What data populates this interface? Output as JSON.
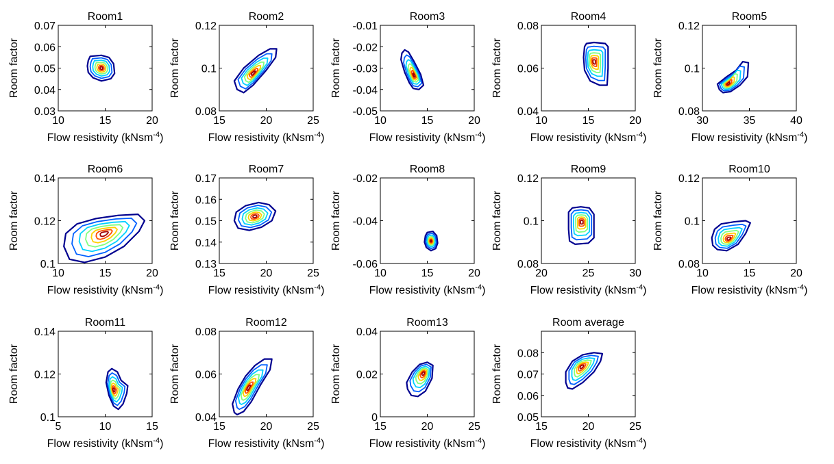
{
  "chart_data": {
    "type": "contour",
    "xlabel": "Flow resistivity (kNsm",
    "xlabel_superscript": "-4",
    "xlabel_suffix": ")",
    "ylabel": "Room factor",
    "grid": false,
    "colors": [
      "#00008f",
      "#0060ff",
      "#00d0ff",
      "#80ff80",
      "#ffd000",
      "#ff5000",
      "#a00000"
    ],
    "panels": [
      {
        "title": "Room1",
        "xlim": [
          10,
          20
        ],
        "ylim": [
          0.03,
          0.07
        ],
        "xticks": [
          "10",
          "15",
          "20"
        ],
        "yticks": [
          "0.03",
          "0.04",
          "0.05",
          "0.06",
          "0.07"
        ],
        "contours": [
          {
            "cx": 14.6,
            "cy": 0.05,
            "points": [
              [
                13.2,
                0.0535
              ],
              [
                13.4,
                0.0555
              ],
              [
                14.6,
                0.056
              ],
              [
                15.4,
                0.055
              ],
              [
                15.9,
                0.052
              ],
              [
                16.0,
                0.0475
              ],
              [
                15.6,
                0.045
              ],
              [
                14.6,
                0.044
              ],
              [
                13.7,
                0.0455
              ],
              [
                13.2,
                0.048
              ],
              [
                13.1,
                0.051
              ]
            ]
          }
        ]
      },
      {
        "title": "Room2",
        "xlim": [
          15,
          25
        ],
        "ylim": [
          0.08,
          0.12
        ],
        "xticks": [
          "15",
          "20",
          "25"
        ],
        "yticks": [
          "0.08",
          "0.1",
          "0.12"
        ],
        "contours": [
          {
            "cx": 18.6,
            "cy": 0.0975,
            "points": [
              [
                16.9,
                0.09
              ],
              [
                16.6,
                0.094
              ],
              [
                17.6,
                0.1
              ],
              [
                19.2,
                0.106
              ],
              [
                20.4,
                0.109
              ],
              [
                21.1,
                0.109
              ],
              [
                21.0,
                0.105
              ],
              [
                20.0,
                0.099
              ],
              [
                18.6,
                0.092
              ],
              [
                17.6,
                0.0885
              ]
            ]
          }
        ]
      },
      {
        "title": "Room3",
        "xlim": [
          10,
          20
        ],
        "ylim": [
          -0.05,
          -0.01
        ],
        "xticks": [
          "10",
          "15",
          "20"
        ],
        "yticks": [
          "-0.05",
          "-0.04",
          "-0.03",
          "-0.02",
          "-0.01"
        ],
        "contours": [
          {
            "cx": 13.6,
            "cy": -0.0335,
            "points": [
              [
                12.3,
                -0.023
              ],
              [
                12.2,
                -0.026
              ],
              [
                12.6,
                -0.032
              ],
              [
                13.1,
                -0.037
              ],
              [
                13.5,
                -0.0395
              ],
              [
                14.1,
                -0.04
              ],
              [
                14.6,
                -0.038
              ],
              [
                14.3,
                -0.033
              ],
              [
                13.6,
                -0.027
              ],
              [
                13.0,
                -0.0225
              ],
              [
                12.6,
                -0.0215
              ]
            ]
          }
        ]
      },
      {
        "title": "Room4",
        "xlim": [
          10,
          20
        ],
        "ylim": [
          0.04,
          0.08
        ],
        "xticks": [
          "10",
          "15",
          "20"
        ],
        "yticks": [
          "0.04",
          "0.06",
          "0.08"
        ],
        "contours": [
          {
            "cx": 15.6,
            "cy": 0.063,
            "points": [
              [
                14.6,
                0.07
              ],
              [
                14.5,
                0.065
              ],
              [
                14.6,
                0.059
              ],
              [
                15.2,
                0.054
              ],
              [
                16.2,
                0.052
              ],
              [
                17.0,
                0.052
              ],
              [
                17.1,
                0.06
              ],
              [
                17.1,
                0.07
              ],
              [
                16.8,
                0.0715
              ],
              [
                15.6,
                0.072
              ],
              [
                14.8,
                0.0715
              ]
            ]
          }
        ]
      },
      {
        "title": "Room5",
        "xlim": [
          30,
          40
        ],
        "ylim": [
          0.08,
          0.12
        ],
        "xticks": [
          "30",
          "35",
          "40"
        ],
        "yticks": [
          "0.08",
          "0.1",
          "0.12"
        ],
        "contours": [
          {
            "cx": 32.7,
            "cy": 0.0925,
            "points": [
              [
                31.8,
                0.09
              ],
              [
                31.6,
                0.0925
              ],
              [
                32.6,
                0.096
              ],
              [
                33.6,
                0.099
              ],
              [
                34.3,
                0.103
              ],
              [
                34.9,
                0.1025
              ],
              [
                34.8,
                0.096
              ],
              [
                34.0,
                0.092
              ],
              [
                33.0,
                0.089
              ],
              [
                32.2,
                0.0885
              ]
            ]
          }
        ]
      },
      {
        "title": "Room6",
        "xlim": [
          10,
          20
        ],
        "ylim": [
          0.1,
          0.14
        ],
        "xticks": [
          "10",
          "15",
          "20"
        ],
        "yticks": [
          "0.1",
          "0.12",
          "0.14"
        ],
        "contours": [
          {
            "cx": 14.9,
            "cy": 0.114,
            "points": [
              [
                10.6,
                0.108
              ],
              [
                10.8,
                0.114
              ],
              [
                12.0,
                0.1185
              ],
              [
                14.0,
                0.121
              ],
              [
                16.4,
                0.1225
              ],
              [
                18.5,
                0.123
              ],
              [
                19.2,
                0.12
              ],
              [
                18.6,
                0.115
              ],
              [
                17.0,
                0.108
              ],
              [
                15.0,
                0.103
              ],
              [
                12.8,
                0.1005
              ],
              [
                11.2,
                0.102
              ]
            ]
          }
        ]
      },
      {
        "title": "Room7",
        "xlim": [
          15,
          25
        ],
        "ylim": [
          0.13,
          0.17
        ],
        "xticks": [
          "15",
          "20",
          "25"
        ],
        "yticks": [
          "0.13",
          "0.14",
          "0.15",
          "0.16",
          "0.17"
        ],
        "contours": [
          {
            "cx": 18.8,
            "cy": 0.152,
            "points": [
              [
                16.6,
                0.15
              ],
              [
                16.8,
                0.154
              ],
              [
                17.8,
                0.157
              ],
              [
                19.2,
                0.1585
              ],
              [
                20.3,
                0.1575
              ],
              [
                21.0,
                0.1545
              ],
              [
                20.6,
                0.15
              ],
              [
                19.5,
                0.147
              ],
              [
                18.2,
                0.1455
              ],
              [
                17.0,
                0.1465
              ]
            ]
          }
        ]
      },
      {
        "title": "Room8",
        "xlim": [
          10,
          20
        ],
        "ylim": [
          -0.06,
          -0.02
        ],
        "xticks": [
          "10",
          "15",
          "20"
        ],
        "yticks": [
          "-0.06",
          "-0.04",
          "-0.02"
        ],
        "contours": [
          {
            "cx": 15.4,
            "cy": -0.0495,
            "points": [
              [
                14.8,
                -0.047
              ],
              [
                15.0,
                -0.0455
              ],
              [
                15.6,
                -0.045
              ],
              [
                16.0,
                -0.047
              ],
              [
                16.1,
                -0.0505
              ],
              [
                15.9,
                -0.053
              ],
              [
                15.4,
                -0.054
              ],
              [
                14.9,
                -0.0525
              ],
              [
                14.7,
                -0.05
              ]
            ]
          }
        ]
      },
      {
        "title": "Room9",
        "xlim": [
          20,
          30
        ],
        "ylim": [
          0.08,
          0.12
        ],
        "xticks": [
          "20",
          "25",
          "30"
        ],
        "yticks": [
          "0.08",
          "0.1",
          "0.12"
        ],
        "contours": [
          {
            "cx": 24.3,
            "cy": 0.0995,
            "points": [
              [
                22.9,
                0.104
              ],
              [
                23.3,
                0.106
              ],
              [
                24.2,
                0.1065
              ],
              [
                25.1,
                0.106
              ],
              [
                25.6,
                0.103
              ],
              [
                25.6,
                0.092
              ],
              [
                25.0,
                0.0895
              ],
              [
                23.6,
                0.089
              ],
              [
                23.0,
                0.0905
              ],
              [
                22.9,
                0.096
              ]
            ]
          }
        ]
      },
      {
        "title": "Room10",
        "xlim": [
          10,
          20
        ],
        "ylim": [
          0.08,
          0.12
        ],
        "xticks": [
          "10",
          "15",
          "20"
        ],
        "yticks": [
          "0.08",
          "0.1",
          "0.12"
        ],
        "contours": [
          {
            "cx": 12.8,
            "cy": 0.0915,
            "points": [
              [
                11.0,
                0.092
              ],
              [
                11.3,
                0.096
              ],
              [
                12.0,
                0.0985
              ],
              [
                13.4,
                0.0995
              ],
              [
                14.6,
                0.1
              ],
              [
                15.1,
                0.099
              ],
              [
                14.6,
                0.094
              ],
              [
                13.8,
                0.089
              ],
              [
                12.6,
                0.086
              ],
              [
                11.6,
                0.0865
              ],
              [
                11.1,
                0.0885
              ]
            ]
          }
        ]
      },
      {
        "title": "Room11",
        "xlim": [
          5,
          15
        ],
        "ylim": [
          0.1,
          0.14
        ],
        "xticks": [
          "5",
          "10",
          "15"
        ],
        "yticks": [
          "0.1",
          "0.12",
          "0.14"
        ],
        "contours": [
          {
            "cx": 10.9,
            "cy": 0.1125,
            "points": [
              [
                10.3,
                0.121
              ],
              [
                10.7,
                0.1225
              ],
              [
                11.3,
                0.121
              ],
              [
                11.7,
                0.117
              ],
              [
                12.4,
                0.1145
              ],
              [
                12.3,
                0.111
              ],
              [
                11.9,
                0.106
              ],
              [
                11.4,
                0.1035
              ],
              [
                10.9,
                0.105
              ],
              [
                10.4,
                0.11
              ],
              [
                10.1,
                0.116
              ]
            ]
          }
        ]
      },
      {
        "title": "Room12",
        "xlim": [
          15,
          25
        ],
        "ylim": [
          0.04,
          0.08
        ],
        "xticks": [
          "15",
          "20",
          "25"
        ],
        "yticks": [
          "0.04",
          "0.06",
          "0.08"
        ],
        "contours": [
          {
            "cx": 18.1,
            "cy": 0.0535,
            "points": [
              [
                16.6,
                0.042
              ],
              [
                16.4,
                0.046
              ],
              [
                17.0,
                0.053
              ],
              [
                17.8,
                0.059
              ],
              [
                18.8,
                0.064
              ],
              [
                19.8,
                0.067
              ],
              [
                20.6,
                0.067
              ],
              [
                20.4,
                0.062
              ],
              [
                19.4,
                0.055
              ],
              [
                18.4,
                0.047
              ],
              [
                17.6,
                0.0425
              ],
              [
                16.9,
                0.041
              ]
            ]
          }
        ]
      },
      {
        "title": "Room13",
        "xlim": [
          15,
          25
        ],
        "ylim": [
          0,
          0.04
        ],
        "xticks": [
          "15",
          "20",
          "25"
        ],
        "yticks": [
          "0",
          "0.02",
          "0.04"
        ],
        "contours": [
          {
            "cx": 19.6,
            "cy": 0.0205,
            "points": [
              [
                17.9,
                0.013
              ],
              [
                17.8,
                0.016
              ],
              [
                18.4,
                0.021
              ],
              [
                19.2,
                0.0245
              ],
              [
                20.0,
                0.0255
              ],
              [
                20.6,
                0.024
              ],
              [
                20.5,
                0.018
              ],
              [
                19.8,
                0.012
              ],
              [
                19.0,
                0.0095
              ],
              [
                18.3,
                0.01
              ]
            ]
          }
        ]
      },
      {
        "title": "Room average",
        "xlim": [
          15,
          25
        ],
        "ylim": [
          0.05,
          0.09
        ],
        "xticks": [
          "15",
          "20",
          "25"
        ],
        "yticks": [
          "0.05",
          "0.06",
          "0.07",
          "0.08"
        ],
        "contours": [
          {
            "cx": 19.3,
            "cy": 0.0735,
            "points": [
              [
                17.6,
                0.066
              ],
              [
                17.6,
                0.071
              ],
              [
                18.3,
                0.076
              ],
              [
                19.4,
                0.079
              ],
              [
                20.6,
                0.08
              ],
              [
                21.5,
                0.0795
              ],
              [
                21.3,
                0.076
              ],
              [
                20.6,
                0.071
              ],
              [
                19.4,
                0.066
              ],
              [
                18.3,
                0.063
              ],
              [
                17.8,
                0.0635
              ]
            ]
          }
        ]
      }
    ]
  }
}
